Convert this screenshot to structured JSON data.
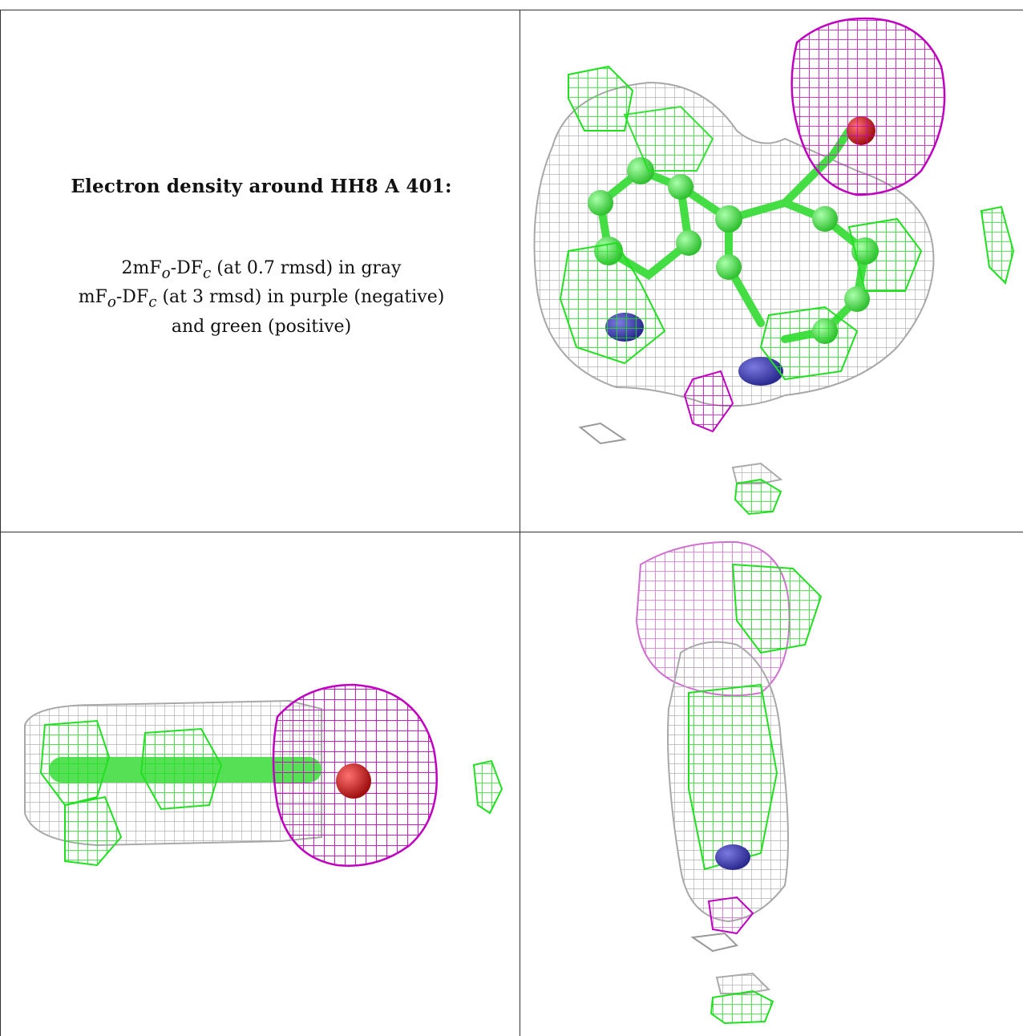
{
  "caption": {
    "title": "Electron density around HH8 A 401:",
    "lines": [
      {
        "text": "2mF",
        "sub1": "o",
        "mid": "-DF",
        "sub2": "c",
        "rest": " (at 0.7 rmsd) in gray"
      },
      {
        "text": "mF",
        "sub1": "o",
        "mid": "-DF",
        "sub2": "c",
        "rest": " (at 3 rmsd) in purple (negative)"
      },
      {
        "text": "and green (positive)"
      }
    ]
  },
  "panels": [
    {
      "name": "view-top",
      "description_icon": "electron-density-mesh"
    },
    {
      "name": "view-side",
      "description_icon": "electron-density-mesh"
    },
    {
      "name": "view-end",
      "description_icon": "electron-density-mesh"
    }
  ],
  "colors": {
    "mesh_gray": "#b8b8b8",
    "mesh_purple": "#c000c0",
    "mesh_green": "#22e022",
    "atom_carbon": "#55ee55",
    "atom_nitrogen": "#3a3ab8",
    "atom_oxygen": "#d02020",
    "border": "#333333"
  }
}
